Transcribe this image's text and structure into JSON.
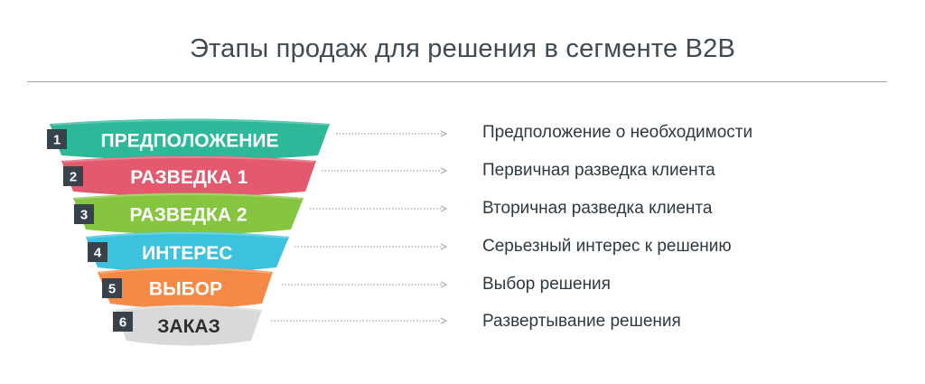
{
  "title": "Этапы продаж для решения в сегменте B2B",
  "stages": [
    {
      "number": "1",
      "label": "ПРЕДПОЛОЖЕНИЕ",
      "description": "Предположение о необходимости",
      "color": "#2db89a",
      "label_color": "#ffffff"
    },
    {
      "number": "2",
      "label": "РАЗВЕДКА 1",
      "description": "Первичная разведка клиента",
      "color": "#e3596d",
      "label_color": "#ffffff"
    },
    {
      "number": "3",
      "label": "РАЗВЕДКА 2",
      "description": "Вторичная разведка клиента",
      "color": "#86c540",
      "label_color": "#ffffff"
    },
    {
      "number": "4",
      "label": "ИНТЕРЕС",
      "description": "Серьезный интерес к решению",
      "color": "#3cc2dc",
      "label_color": "#ffffff"
    },
    {
      "number": "5",
      "label": "ВЫБОР",
      "description": "Выбор решения",
      "color": "#f58a46",
      "label_color": "#ffffff"
    },
    {
      "number": "6",
      "label": "ЗАКАЗ",
      "description": "Развертывание решения",
      "color": "#d9d9d9",
      "label_color": "#2e2e2e"
    }
  ],
  "colors": {
    "number_box": "#37424a",
    "arrow": "#b3b3b3"
  }
}
